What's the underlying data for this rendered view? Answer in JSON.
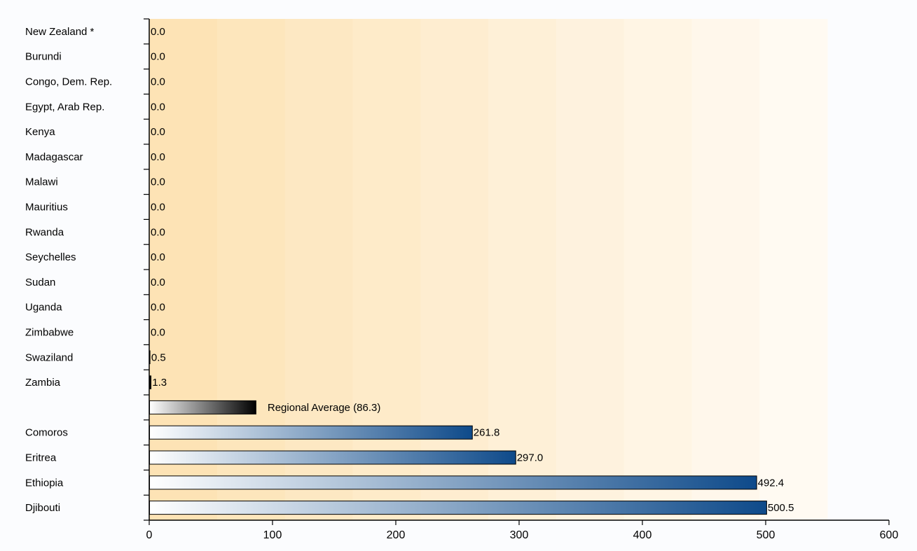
{
  "chart_data": {
    "type": "bar",
    "orientation": "horizontal",
    "title": "",
    "xlabel": "",
    "ylabel": "",
    "xlim": [
      0,
      600
    ],
    "x_ticks": [
      "0",
      "100",
      "200",
      "300",
      "400",
      "500",
      "600"
    ],
    "grid": false,
    "categories": [
      "New Zealand *",
      "Burundi",
      "Congo, Dem. Rep.",
      "Egypt, Arab Rep.",
      "Kenya",
      "Madagascar",
      "Malawi",
      "Mauritius",
      "Rwanda",
      "Seychelles",
      "Sudan",
      "Uganda",
      "Zimbabwe",
      "Swaziland",
      "Zambia",
      "",
      "Comoros",
      "Eritrea",
      "Ethiopia",
      "Djibouti"
    ],
    "values": [
      0.0,
      0.0,
      0.0,
      0.0,
      0.0,
      0.0,
      0.0,
      0.0,
      0.0,
      0.0,
      0.0,
      0.0,
      0.0,
      0.5,
      1.3,
      86.3,
      261.8,
      297.0,
      492.4,
      500.5
    ],
    "value_labels": [
      "0.0",
      "0.0",
      "0.0",
      "0.0",
      "0.0",
      "0.0",
      "0.0",
      "0.0",
      "0.0",
      "0.0",
      "0.0",
      "0.0",
      "0.0",
      "0.5",
      "1.3",
      "Regional Average (86.3)",
      "261.8",
      "297.0",
      "492.4",
      "500.5"
    ],
    "bar_kinds": [
      "base",
      "base",
      "base",
      "base",
      "base",
      "base",
      "base",
      "base",
      "base",
      "base",
      "base",
      "base",
      "base",
      "base",
      "base",
      "average",
      "highlight",
      "highlight",
      "highlight",
      "highlight"
    ],
    "background_bands": 10,
    "colors": {
      "highlight_start": "#ffffff",
      "highlight_end": "#0e4a8a",
      "average_start": "#ffffff",
      "average_end": "#000000",
      "band_dark": "#fde3b5",
      "band_light": "#fffaf2",
      "page_bg": "#fbfcfe"
    }
  }
}
